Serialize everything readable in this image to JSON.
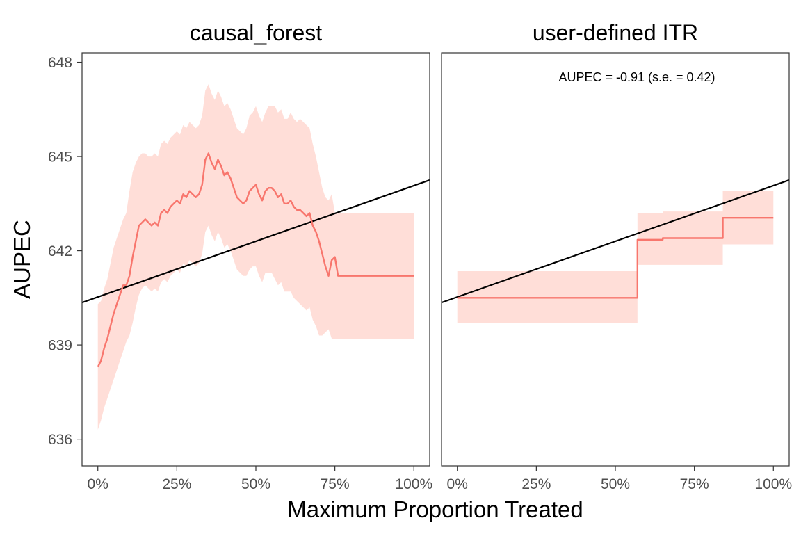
{
  "chart_data": {
    "type": "line",
    "xlabel": "Maximum Proportion Treated",
    "ylabel": "AUPEC",
    "y_ticks": [
      636,
      639,
      642,
      645,
      648
    ],
    "y_tick_labels": [
      "636",
      "639",
      "642",
      "645",
      "648"
    ],
    "x_ticks": [
      0,
      0.25,
      0.5,
      0.75,
      1.0
    ],
    "x_tick_labels": [
      "0%",
      "25%",
      "50%",
      "75%",
      "100%"
    ],
    "xlim": [
      -0.05,
      1.05
    ],
    "ylim": [
      635.15,
      648.3
    ],
    "colors": {
      "series": "#f8766d",
      "ribbon": "#ffded8",
      "reference": "#000000"
    },
    "panels": [
      {
        "title": "causal_forest",
        "annotation": "",
        "reference_line": {
          "x": [
            -0.05,
            1.05
          ],
          "y": [
            640.35,
            644.25
          ]
        },
        "series": [
          {
            "name": "causal_forest",
            "x": [
              0,
              0.01,
              0.02,
              0.03,
              0.04,
              0.05,
              0.06,
              0.07,
              0.08,
              0.09,
              0.1,
              0.11,
              0.12,
              0.13,
              0.14,
              0.15,
              0.16,
              0.17,
              0.18,
              0.19,
              0.2,
              0.21,
              0.22,
              0.23,
              0.24,
              0.25,
              0.26,
              0.27,
              0.28,
              0.29,
              0.3,
              0.31,
              0.32,
              0.33,
              0.34,
              0.35,
              0.36,
              0.37,
              0.38,
              0.39,
              0.4,
              0.41,
              0.42,
              0.43,
              0.44,
              0.45,
              0.46,
              0.47,
              0.48,
              0.49,
              0.5,
              0.51,
              0.52,
              0.53,
              0.54,
              0.55,
              0.56,
              0.57,
              0.58,
              0.59,
              0.6,
              0.61,
              0.62,
              0.63,
              0.64,
              0.65,
              0.66,
              0.67,
              0.68,
              0.69,
              0.7,
              0.71,
              0.72,
              0.73,
              0.74,
              0.75,
              0.76,
              0.77,
              0.8,
              0.9,
              1.0
            ],
            "y": [
              638.3,
              638.5,
              638.9,
              639.2,
              639.6,
              640.0,
              640.3,
              640.6,
              640.9,
              640.9,
              641.2,
              641.8,
              642.3,
              642.8,
              642.9,
              643.0,
              642.9,
              642.8,
              642.9,
              642.8,
              643.2,
              643.3,
              643.2,
              643.4,
              643.5,
              643.6,
              643.5,
              643.8,
              643.7,
              643.9,
              643.8,
              643.7,
              643.8,
              644.1,
              644.9,
              645.1,
              644.8,
              644.6,
              644.9,
              644.7,
              644.4,
              644.5,
              644.3,
              644.0,
              643.7,
              643.6,
              643.5,
              643.6,
              643.9,
              644.0,
              644.1,
              643.8,
              643.6,
              643.9,
              644.0,
              644.0,
              643.9,
              643.7,
              643.8,
              643.5,
              643.5,
              643.6,
              643.4,
              643.3,
              643.3,
              643.2,
              643.1,
              643.2,
              642.8,
              642.6,
              642.3,
              641.9,
              641.5,
              641.2,
              641.7,
              641.8,
              641.2,
              641.2,
              641.2,
              641.2,
              641.2
            ],
            "lower": [
              636.3,
              636.6,
              637.0,
              637.3,
              637.6,
              637.9,
              638.2,
              638.5,
              638.8,
              639.1,
              639.3,
              639.7,
              640.2,
              640.6,
              640.8,
              640.9,
              640.8,
              640.7,
              640.8,
              640.7,
              641.0,
              641.1,
              641.0,
              641.2,
              641.3,
              641.4,
              641.3,
              641.6,
              641.5,
              641.7,
              641.6,
              641.5,
              641.6,
              641.9,
              642.6,
              642.8,
              642.5,
              642.3,
              642.6,
              642.4,
              642.1,
              642.2,
              642.0,
              641.7,
              641.4,
              641.3,
              641.2,
              641.2,
              641.4,
              641.5,
              641.5,
              641.2,
              641.0,
              641.3,
              641.3,
              641.3,
              641.1,
              640.9,
              641.0,
              640.7,
              640.7,
              640.7,
              640.5,
              640.4,
              640.3,
              640.2,
              640.1,
              640.2,
              639.8,
              639.6,
              639.3,
              639.3,
              639.4,
              639.5,
              639.2,
              639.2,
              639.2,
              639.2,
              639.2,
              639.2,
              639.2
            ],
            "upper": [
              640.3,
              640.4,
              640.8,
              641.1,
              641.6,
              642.1,
              642.4,
              642.7,
              643.0,
              643.2,
              643.9,
              644.5,
              644.8,
              645.0,
              645.1,
              645.1,
              645.0,
              645.0,
              645.1,
              645.0,
              645.4,
              645.5,
              645.4,
              645.6,
              645.7,
              645.8,
              645.7,
              646.0,
              645.9,
              646.1,
              646.0,
              645.9,
              646.0,
              646.3,
              647.1,
              647.3,
              647.0,
              646.8,
              647.1,
              646.9,
              646.6,
              646.7,
              646.5,
              646.2,
              645.9,
              645.8,
              645.7,
              645.9,
              646.3,
              646.4,
              646.6,
              646.3,
              646.1,
              646.4,
              646.6,
              646.6,
              646.6,
              646.4,
              646.5,
              646.2,
              646.2,
              646.4,
              646.2,
              646.1,
              646.2,
              646.1,
              646.0,
              645.9,
              645.4,
              645.0,
              644.5,
              644.0,
              643.7,
              643.6,
              643.8,
              643.2,
              643.2,
              643.2,
              643.2,
              643.2,
              643.2
            ]
          }
        ]
      },
      {
        "title": "user-defined ITR",
        "annotation": "AUPEC = -0.91 (s.e. = 0.42)",
        "reference_line": {
          "x": [
            -0.05,
            1.05
          ],
          "y": [
            640.35,
            644.25
          ]
        },
        "series": [
          {
            "name": "user-defined ITR",
            "step": true,
            "x": [
              0,
              0.57,
              0.65,
              0.84,
              1.0
            ],
            "y": [
              640.5,
              642.35,
              642.4,
              643.05,
              643.05
            ],
            "lower": [
              639.7,
              641.55,
              641.55,
              642.2,
              642.2
            ],
            "upper": [
              641.35,
              643.2,
              643.25,
              643.9,
              643.9
            ]
          }
        ]
      }
    ]
  }
}
